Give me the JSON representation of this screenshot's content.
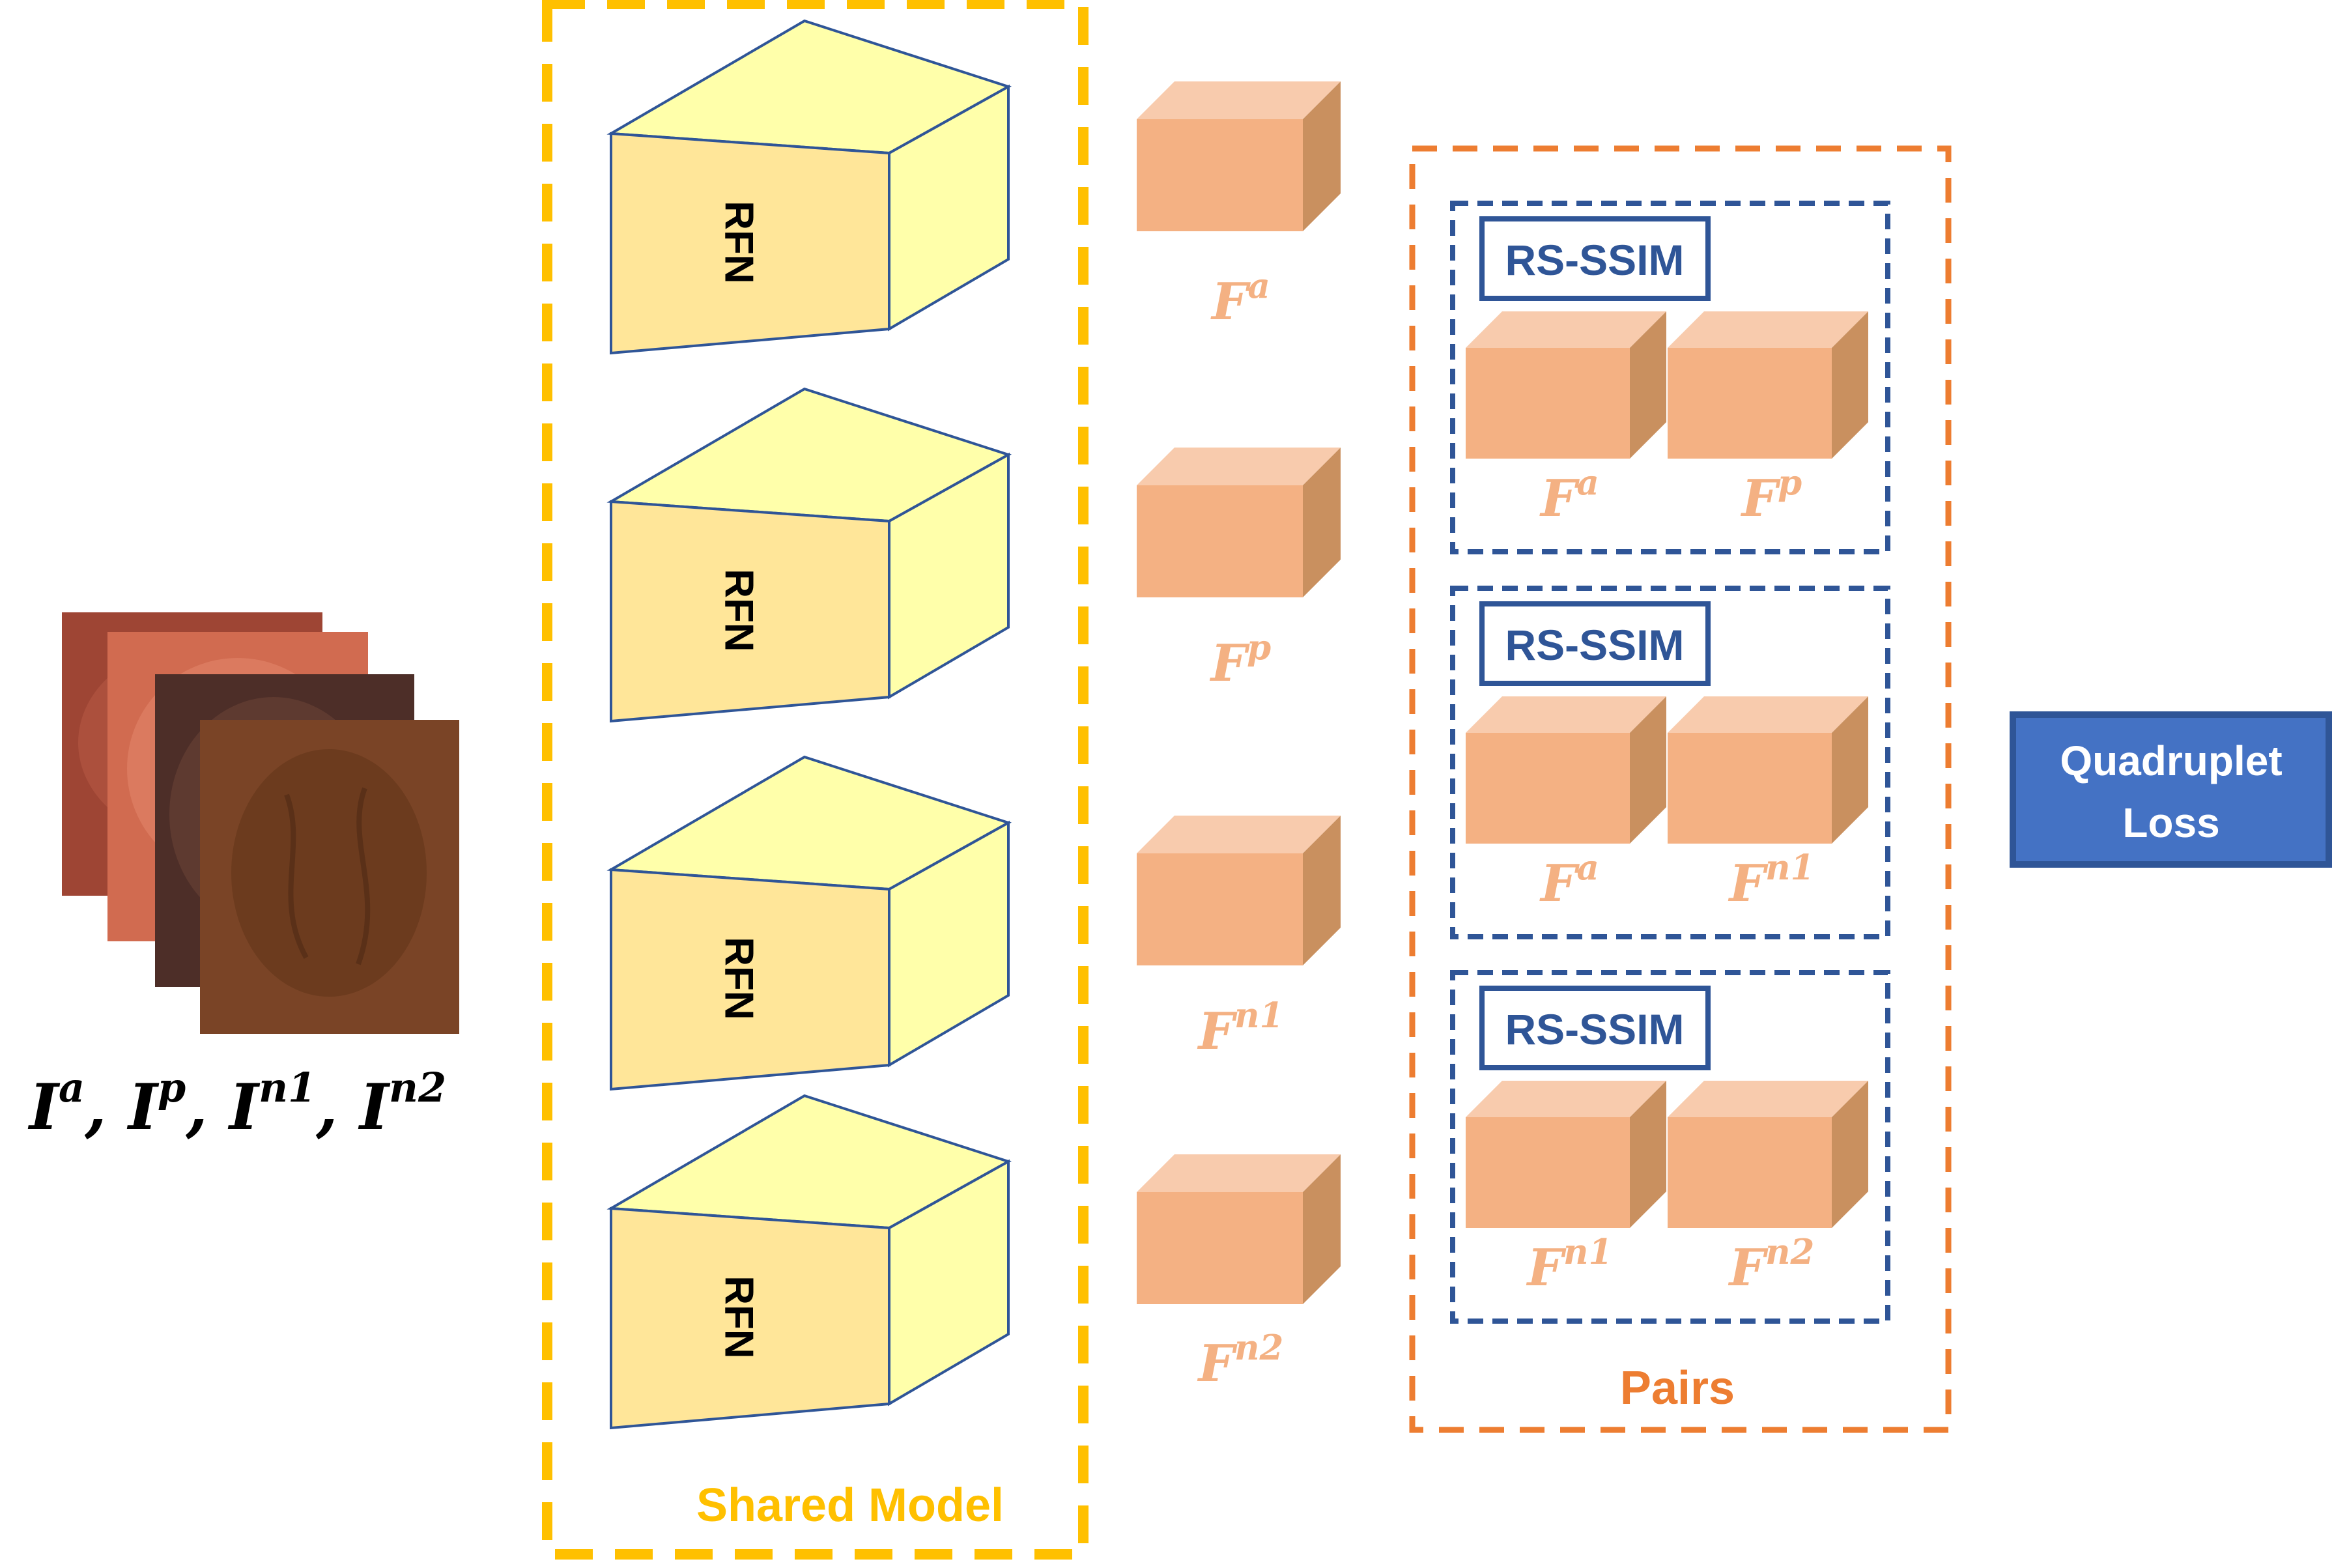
{
  "input": {
    "label_parts": [
      "I",
      "a",
      ", ",
      "I",
      "p",
      ", ",
      "I",
      "n1",
      ", ",
      "I",
      "n2"
    ],
    "images": [
      "anchor-image",
      "positive-image",
      "negative1-image",
      "negative2-image"
    ]
  },
  "shared_model": {
    "title": "Shared Model",
    "block_label": "RFN",
    "blocks": 4
  },
  "features": [
    {
      "base": "F",
      "sup": "a"
    },
    {
      "base": "F",
      "sup": "p"
    },
    {
      "base": "F",
      "sup": "n1"
    },
    {
      "base": "F",
      "sup": "n2"
    }
  ],
  "pairs": {
    "title": "Pairs",
    "metric_label": "RS-SSIM",
    "groups": [
      {
        "left": {
          "base": "F",
          "sup": "a"
        },
        "right": {
          "base": "F",
          "sup": "p"
        }
      },
      {
        "left": {
          "base": "F",
          "sup": "a"
        },
        "right": {
          "base": "F",
          "sup": "n1"
        }
      },
      {
        "left": {
          "base": "F",
          "sup": "n1"
        },
        "right": {
          "base": "F",
          "sup": "n2"
        }
      }
    ]
  },
  "loss": {
    "line1": "Quadruplet",
    "line2": "Loss"
  },
  "colors": {
    "shared_border": "#FFC000",
    "pairs_border": "#ED7D31",
    "group_border": "#2F5597",
    "loss_fill": "#4472C4",
    "feature_label": "#F4B183",
    "cube_front": "#F4B183",
    "cube_top": "#F8CBAD",
    "cube_side": "#C9905F",
    "rfn_front": "#FFE699",
    "rfn_side": "#FFFFAA"
  }
}
